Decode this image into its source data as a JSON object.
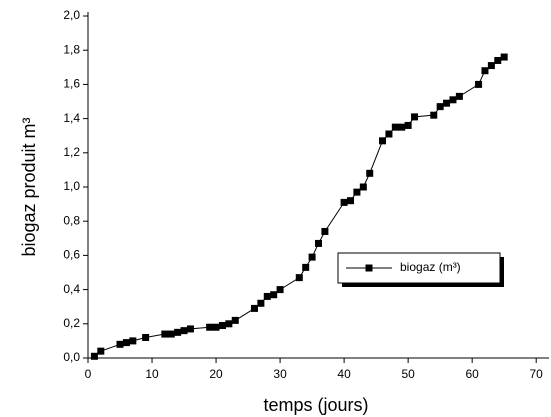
{
  "chart_data": {
    "type": "line",
    "x_label": "temps (jours)",
    "y_label": "biogaz produit m³",
    "x": [
      1,
      2,
      5,
      6,
      7,
      9,
      12,
      13,
      14,
      15,
      16,
      19,
      20,
      21,
      22,
      23,
      26,
      27,
      28,
      29,
      30,
      33,
      34,
      35,
      36,
      37,
      40,
      41,
      42,
      43,
      44,
      46,
      47,
      48,
      49,
      50,
      51,
      54,
      55,
      56,
      57,
      58,
      61,
      62,
      63,
      64,
      65
    ],
    "series": [
      {
        "name": "biogaz (m³)",
        "color": "#000000",
        "values": [
          0.01,
          0.04,
          0.08,
          0.09,
          0.1,
          0.12,
          0.14,
          0.14,
          0.15,
          0.16,
          0.17,
          0.18,
          0.18,
          0.19,
          0.2,
          0.22,
          0.29,
          0.32,
          0.36,
          0.37,
          0.4,
          0.47,
          0.53,
          0.59,
          0.67,
          0.74,
          0.91,
          0.92,
          0.97,
          1.0,
          1.08,
          1.27,
          1.31,
          1.35,
          1.35,
          1.36,
          1.41,
          1.42,
          1.47,
          1.49,
          1.51,
          1.53,
          1.6,
          1.68,
          1.71,
          1.74,
          1.76
        ]
      }
    ],
    "xlim": [
      0,
      72
    ],
    "ylim": [
      0,
      2.0
    ],
    "xticks": [
      0,
      10,
      20,
      30,
      40,
      50,
      60,
      70
    ],
    "yticks": [
      {
        "value": 0,
        "label": "0,0"
      },
      {
        "value": 0.2,
        "label": "0,2"
      },
      {
        "value": 0.4,
        "label": "0,4"
      },
      {
        "value": 0.6,
        "label": "0,6"
      },
      {
        "value": 0.8,
        "label": "0,8"
      },
      {
        "value": 1.0,
        "label": "1,0"
      },
      {
        "value": 1.2,
        "label": "1,2"
      },
      {
        "value": 1.4,
        "label": "1,4"
      },
      {
        "value": 1.6,
        "label": "1,6"
      },
      {
        "value": 1.8,
        "label": "1,8"
      },
      {
        "value": 2.0,
        "label": "2,0"
      }
    ],
    "grid": false
  }
}
